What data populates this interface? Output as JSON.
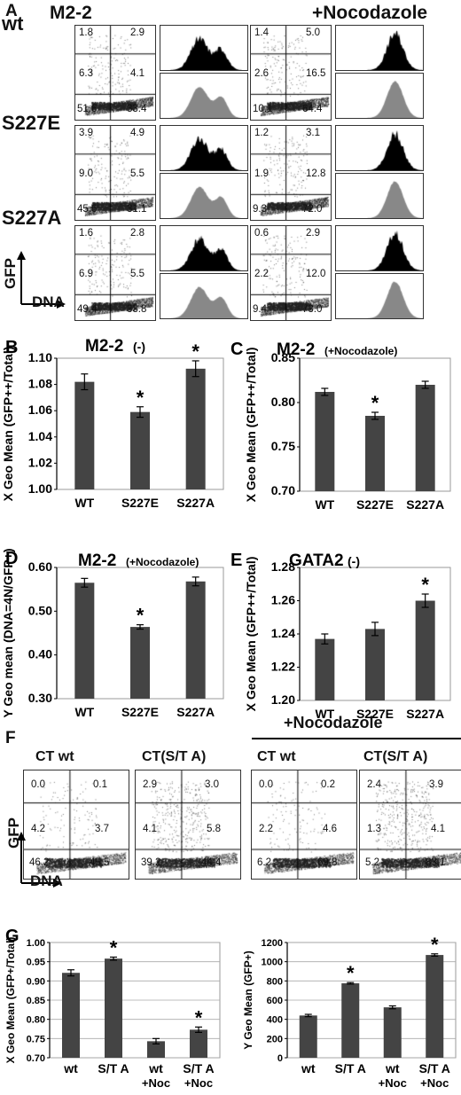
{
  "panelA": {
    "letter": "A",
    "title_left": "M2-2",
    "title_right": "+Nocodazole",
    "rows": [
      {
        "label": "wt",
        "left": {
          "q": [
            "1.8",
            "2.9",
            "6.3",
            "4.1",
            "51.6",
            "33.4"
          ]
        },
        "right": {
          "q": [
            "1.4",
            "5.0",
            "2.6",
            "16.5",
            "10.1",
            "64.4"
          ]
        }
      },
      {
        "label": "S227E",
        "left": {
          "q": [
            "3.9",
            "4.9",
            "9.0",
            "5.5",
            "45.6",
            "31.1"
          ]
        },
        "right": {
          "q": [
            "1.2",
            "3.1",
            "1.9",
            "12.8",
            "9.3",
            "72.0"
          ]
        }
      },
      {
        "label": "S227A",
        "left": {
          "q": [
            "1.6",
            "2.8",
            "6.9",
            "5.5",
            "49.4",
            "33.8"
          ]
        },
        "right": {
          "q": [
            "0.6",
            "2.9",
            "2.2",
            "12.0",
            "9.4",
            "73.0"
          ]
        }
      }
    ],
    "axis_y": "GFP",
    "axis_x": "DNA"
  },
  "chart_data": [
    {
      "id": "B",
      "letter": "B",
      "type": "bar",
      "title": "M2-2",
      "subtitle": "(-)",
      "categories": [
        "WT",
        "S227E",
        "S227A"
      ],
      "values": [
        1.082,
        1.059,
        1.092
      ],
      "errors": [
        0.006,
        0.004,
        0.006
      ],
      "significant": [
        false,
        true,
        true
      ],
      "ylabel": "X Geo Mean (GFP++/Total)",
      "ylim": [
        1.0,
        1.1
      ],
      "yticks": [
        "1.00",
        "1.02",
        "1.04",
        "1.06",
        "1.08",
        "1.10"
      ]
    },
    {
      "id": "C",
      "letter": "C",
      "type": "bar",
      "title": "M2-2",
      "subtitle": "(+Nocodazole)",
      "categories": [
        "WT",
        "S227E",
        "S227A"
      ],
      "values": [
        0.812,
        0.785,
        0.82
      ],
      "errors": [
        0.004,
        0.004,
        0.004
      ],
      "significant": [
        false,
        true,
        false
      ],
      "ylabel": "X Geo Mean (GFP++/Total)",
      "ylim": [
        0.7,
        0.85
      ],
      "yticks": [
        "0.70",
        "0.75",
        "0.80",
        "0.85"
      ]
    },
    {
      "id": "D",
      "letter": "D",
      "type": "bar",
      "title": "M2-2",
      "subtitle": "(+Nocodazole)",
      "categories": [
        "WT",
        "S227E",
        "S227A"
      ],
      "values": [
        0.565,
        0.464,
        0.568
      ],
      "errors": [
        0.01,
        0.005,
        0.01
      ],
      "significant": [
        false,
        true,
        false
      ],
      "ylabel": "Y Geo mean (DNA=4N/GFP+)",
      "ylim": [
        0.3,
        0.6
      ],
      "yticks": [
        "0.30",
        "0.40",
        "0.50",
        "0.60"
      ]
    },
    {
      "id": "E",
      "letter": "E",
      "type": "bar",
      "title": "GATA2",
      "subtitle": "(-)",
      "categories": [
        "WT",
        "S227E",
        "S227A"
      ],
      "values": [
        1.237,
        1.243,
        1.26
      ],
      "errors": [
        0.003,
        0.004,
        0.004
      ],
      "significant": [
        false,
        false,
        true
      ],
      "ylabel": "X Geo Mean (GFP++/Total)",
      "ylim": [
        1.2,
        1.28
      ],
      "yticks": [
        "1.20",
        "1.22",
        "1.24",
        "1.26",
        "1.28"
      ]
    },
    {
      "id": "G1",
      "letter": "G",
      "type": "bar",
      "title": "",
      "subtitle": "",
      "categories": [
        "wt",
        "S/T A",
        "wt +Noc",
        "S/T A +Noc"
      ],
      "values": [
        0.921,
        0.958,
        0.743,
        0.773
      ],
      "errors": [
        0.008,
        0.004,
        0.007,
        0.007
      ],
      "significant": [
        false,
        true,
        false,
        true
      ],
      "ylabel": "X Geo Mean (GFP+/Total)",
      "ylim": [
        0.7,
        1.0
      ],
      "yticks": [
        "0.70",
        "0.75",
        "0.80",
        "0.85",
        "0.90",
        "0.95",
        "1.00"
      ]
    },
    {
      "id": "G2",
      "letter": "",
      "type": "bar",
      "title": "",
      "subtitle": "",
      "categories": [
        "wt",
        "S/T A",
        "wt +Noc",
        "S/T A +Noc"
      ],
      "values": [
        440,
        775,
        525,
        1070
      ],
      "errors": [
        12,
        8,
        15,
        12
      ],
      "significant": [
        false,
        true,
        false,
        true
      ],
      "ylabel": "Y Geo Mean (GFP+)",
      "ylim": [
        0,
        1200
      ],
      "yticks": [
        "0",
        "200",
        "400",
        "600",
        "800",
        "1000",
        "1200"
      ]
    }
  ],
  "panelF": {
    "letter": "F",
    "header": "+Nocodazole",
    "plots": [
      {
        "label": "CT wt",
        "q": [
          "0.0",
          "0.1",
          "4.2",
          "3.7",
          "46.2",
          "45.5"
        ]
      },
      {
        "label": "CT(S/T A)",
        "q": [
          "2.9",
          "3.0",
          "4.1",
          "5.8",
          "39.2",
          "44.4"
        ]
      },
      {
        "label": "CT wt",
        "q": [
          "0.0",
          "0.2",
          "2.2",
          "4.6",
          "6.2",
          "69.8"
        ]
      },
      {
        "label": "CT(S/T A)",
        "q": [
          "2.4",
          "3.9",
          "1.3",
          "4.1",
          "5.2",
          "83.1"
        ]
      }
    ],
    "axis_y": "GFP",
    "axis_x": "DNA"
  }
}
